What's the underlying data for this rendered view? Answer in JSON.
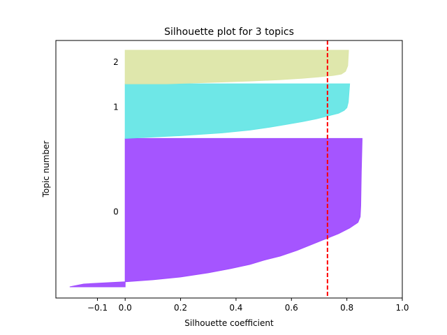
{
  "chart_data": {
    "type": "area",
    "title": "Silhouette plot for 3 topics",
    "xlabel": "Silhouette coefficient",
    "ylabel": "Topic number",
    "xlim": [
      -0.25,
      1.0
    ],
    "ylim": [
      0,
      92
    ],
    "x_ticks": [
      -0.1,
      0.0,
      0.2,
      0.4,
      0.6,
      0.8,
      1.0
    ],
    "x_tick_labels": [
      "−0.1",
      "0.0",
      "0.2",
      "0.4",
      "0.6",
      "0.8",
      "1.0"
    ],
    "grid": false,
    "average_silhouette": 0.73,
    "average_line_color": "#ff0000",
    "clusters": [
      {
        "label": "0",
        "color": "#a04cff",
        "y_range": [
          4,
          57
        ],
        "label_y": 31,
        "profile": [
          [
            4,
            -0.2
          ],
          [
            5,
            -0.15
          ],
          [
            5.8,
            0.0
          ],
          [
            6.5,
            0.1
          ],
          [
            7.5,
            0.2
          ],
          [
            9,
            0.3
          ],
          [
            10.5,
            0.38
          ],
          [
            12,
            0.45
          ],
          [
            13.5,
            0.5
          ],
          [
            15,
            0.56
          ],
          [
            17,
            0.62
          ],
          [
            19,
            0.67
          ],
          [
            21,
            0.72
          ],
          [
            23,
            0.77
          ],
          [
            25,
            0.81
          ],
          [
            27,
            0.84
          ],
          [
            29,
            0.848
          ],
          [
            33,
            0.85
          ],
          [
            45,
            0.852
          ],
          [
            57,
            0.855
          ]
        ]
      },
      {
        "label": "1",
        "color": "#66e6e6",
        "y_range": [
          57,
          76.5
        ],
        "label_y": 68.5,
        "profile": [
          [
            57,
            0.0
          ],
          [
            58,
            0.2
          ],
          [
            59,
            0.35
          ],
          [
            60,
            0.45
          ],
          [
            61,
            0.52
          ],
          [
            62,
            0.58
          ],
          [
            63,
            0.64
          ],
          [
            64,
            0.69
          ],
          [
            65,
            0.73
          ],
          [
            66,
            0.77
          ],
          [
            67,
            0.79
          ],
          [
            68,
            0.8
          ],
          [
            70,
            0.805
          ],
          [
            76.5,
            0.81
          ]
        ]
      },
      {
        "label": "2",
        "color": "#dde6a8",
        "y_range": [
          76.5,
          88.5
        ],
        "label_y": 84.5,
        "profile": [
          [
            76.5,
            0.15
          ],
          [
            77,
            0.3
          ],
          [
            77.5,
            0.45
          ],
          [
            78,
            0.56
          ],
          [
            78.5,
            0.64
          ],
          [
            79,
            0.7
          ],
          [
            79.5,
            0.75
          ],
          [
            80,
            0.78
          ],
          [
            81,
            0.795
          ],
          [
            83,
            0.803
          ],
          [
            88.5,
            0.806
          ]
        ]
      }
    ]
  }
}
